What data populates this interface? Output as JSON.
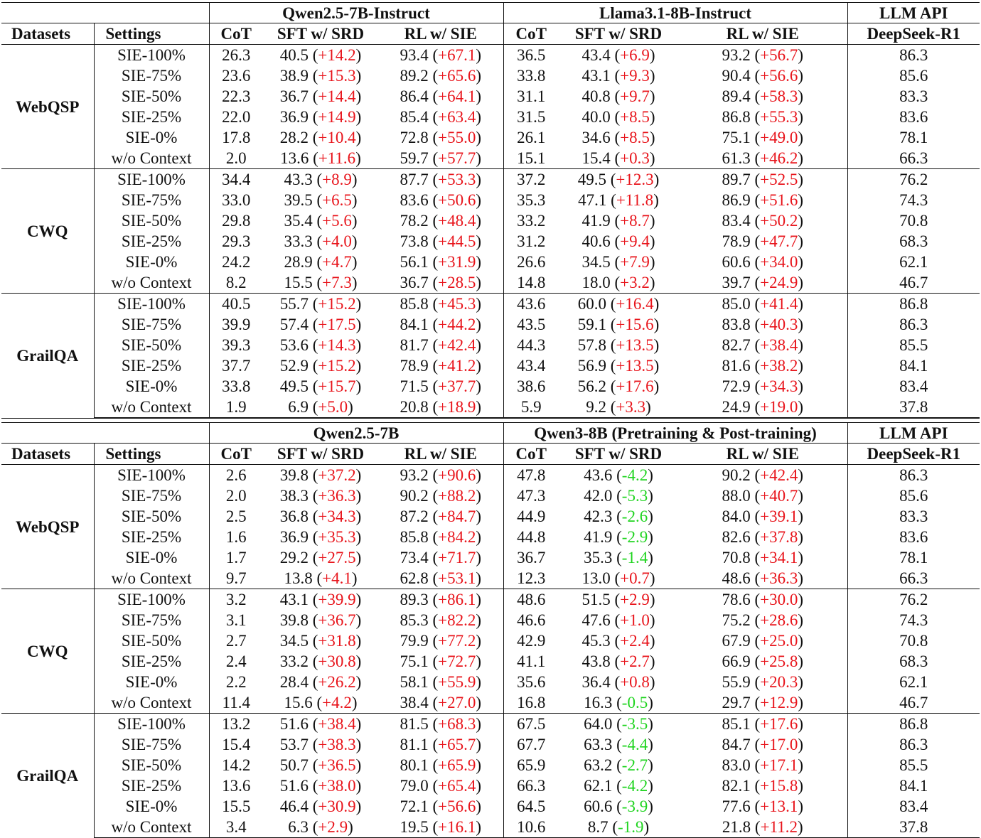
{
  "tables": [
    {
      "header": {
        "model_groups": [
          "Qwen2.5-7B-Instruct",
          "Llama3.1-8B-Instruct",
          "LLM API"
        ],
        "columns": [
          "Datasets",
          "Settings",
          "CoT",
          "SFT w/ SRD",
          "RL w/ SIE",
          "CoT",
          "SFT w/ SRD",
          "RL w/ SIE",
          "DeepSeek-R1"
        ]
      },
      "groups": [
        {
          "dataset": "WebQSP",
          "rows": [
            {
              "setting": "SIE-100%",
              "cot1": "26.3",
              "sft1": "40.5",
              "sft1_d": "+14.2",
              "rl1": "93.4",
              "rl1_d": "+67.1",
              "cot2": "36.5",
              "sft2": "43.4",
              "sft2_d": "+6.9",
              "rl2": "93.2",
              "rl2_d": "+56.7",
              "api": "86.3"
            },
            {
              "setting": "SIE-75%",
              "cot1": "23.6",
              "sft1": "38.9",
              "sft1_d": "+15.3",
              "rl1": "89.2",
              "rl1_d": "+65.6",
              "cot2": "33.8",
              "sft2": "43.1",
              "sft2_d": "+9.3",
              "rl2": "90.4",
              "rl2_d": "+56.6",
              "api": "85.6"
            },
            {
              "setting": "SIE-50%",
              "cot1": "22.3",
              "sft1": "36.7",
              "sft1_d": "+14.4",
              "rl1": "86.4",
              "rl1_d": "+64.1",
              "cot2": "31.1",
              "sft2": "40.8",
              "sft2_d": "+9.7",
              "rl2": "89.4",
              "rl2_d": "+58.3",
              "api": "83.3"
            },
            {
              "setting": "SIE-25%",
              "cot1": "22.0",
              "sft1": "36.9",
              "sft1_d": "+14.9",
              "rl1": "85.4",
              "rl1_d": "+63.4",
              "cot2": "31.5",
              "sft2": "40.0",
              "sft2_d": "+8.5",
              "rl2": "86.8",
              "rl2_d": "+55.3",
              "api": "83.6"
            },
            {
              "setting": "SIE-0%",
              "cot1": "17.8",
              "sft1": "28.2",
              "sft1_d": "+10.4",
              "rl1": "72.8",
              "rl1_d": "+55.0",
              "cot2": "26.1",
              "sft2": "34.6",
              "sft2_d": "+8.5",
              "rl2": "75.1",
              "rl2_d": "+49.0",
              "api": "78.1"
            },
            {
              "setting": "w/o Context",
              "cot1": "2.0",
              "sft1": "13.6",
              "sft1_d": "+11.6",
              "rl1": "59.7",
              "rl1_d": "+57.7",
              "cot2": "15.1",
              "sft2": "15.4",
              "sft2_d": "+0.3",
              "rl2": "61.3",
              "rl2_d": "+46.2",
              "api": "66.3"
            }
          ]
        },
        {
          "dataset": "CWQ",
          "rows": [
            {
              "setting": "SIE-100%",
              "cot1": "34.4",
              "sft1": "43.3",
              "sft1_d": "+8.9",
              "rl1": "87.7",
              "rl1_d": "+53.3",
              "cot2": "37.2",
              "sft2": "49.5",
              "sft2_d": "+12.3",
              "rl2": "89.7",
              "rl2_d": "+52.5",
              "api": "76.2"
            },
            {
              "setting": "SIE-75%",
              "cot1": "33.0",
              "sft1": "39.5",
              "sft1_d": "+6.5",
              "rl1": "83.6",
              "rl1_d": "+50.6",
              "cot2": "35.3",
              "sft2": "47.1",
              "sft2_d": "+11.8",
              "rl2": "86.9",
              "rl2_d": "+51.6",
              "api": "74.3"
            },
            {
              "setting": "SIE-50%",
              "cot1": "29.8",
              "sft1": "35.4",
              "sft1_d": "+5.6",
              "rl1": "78.2",
              "rl1_d": "+48.4",
              "cot2": "33.2",
              "sft2": "41.9",
              "sft2_d": "+8.7",
              "rl2": "83.4",
              "rl2_d": "+50.2",
              "api": "70.8"
            },
            {
              "setting": "SIE-25%",
              "cot1": "29.3",
              "sft1": "33.3",
              "sft1_d": "+4.0",
              "rl1": "73.8",
              "rl1_d": "+44.5",
              "cot2": "31.2",
              "sft2": "40.6",
              "sft2_d": "+9.4",
              "rl2": "78.9",
              "rl2_d": "+47.7",
              "api": "68.3"
            },
            {
              "setting": "SIE-0%",
              "cot1": "24.2",
              "sft1": "28.9",
              "sft1_d": "+4.7",
              "rl1": "56.1",
              "rl1_d": "+31.9",
              "cot2": "26.6",
              "sft2": "34.5",
              "sft2_d": "+7.9",
              "rl2": "60.6",
              "rl2_d": "+34.0",
              "api": "62.1"
            },
            {
              "setting": "w/o Context",
              "cot1": "8.2",
              "sft1": "15.5",
              "sft1_d": "+7.3",
              "rl1": "36.7",
              "rl1_d": "+28.5",
              "cot2": "14.8",
              "sft2": "18.0",
              "sft2_d": "+3.2",
              "rl2": "39.7",
              "rl2_d": "+24.9",
              "api": "46.7"
            }
          ]
        },
        {
          "dataset": "GrailQA",
          "rows": [
            {
              "setting": "SIE-100%",
              "cot1": "40.5",
              "sft1": "55.7",
              "sft1_d": "+15.2",
              "rl1": "85.8",
              "rl1_d": "+45.3",
              "cot2": "43.6",
              "sft2": "60.0",
              "sft2_d": "+16.4",
              "rl2": "85.0",
              "rl2_d": "+41.4",
              "api": "86.8"
            },
            {
              "setting": "SIE-75%",
              "cot1": "39.9",
              "sft1": "57.4",
              "sft1_d": "+17.5",
              "rl1": "84.1",
              "rl1_d": "+44.2",
              "cot2": "43.5",
              "sft2": "59.1",
              "sft2_d": "+15.6",
              "rl2": "83.8",
              "rl2_d": "+40.3",
              "api": "86.3"
            },
            {
              "setting": "SIE-50%",
              "cot1": "39.3",
              "sft1": "53.6",
              "sft1_d": "+14.3",
              "rl1": "81.7",
              "rl1_d": "+42.4",
              "cot2": "44.3",
              "sft2": "57.8",
              "sft2_d": "+13.5",
              "rl2": "82.7",
              "rl2_d": "+38.4",
              "api": "85.5"
            },
            {
              "setting": "SIE-25%",
              "cot1": "37.7",
              "sft1": "52.9",
              "sft1_d": "+15.2",
              "rl1": "78.9",
              "rl1_d": "+41.2",
              "cot2": "43.4",
              "sft2": "56.9",
              "sft2_d": "+13.5",
              "rl2": "81.6",
              "rl2_d": "+38.2",
              "api": "84.1"
            },
            {
              "setting": "SIE-0%",
              "cot1": "33.8",
              "sft1": "49.5",
              "sft1_d": "+15.7",
              "rl1": "71.5",
              "rl1_d": "+37.7",
              "cot2": "38.6",
              "sft2": "56.2",
              "sft2_d": "+17.6",
              "rl2": "72.9",
              "rl2_d": "+34.3",
              "api": "83.4"
            },
            {
              "setting": "w/o Context",
              "cot1": "1.9",
              "sft1": "6.9",
              "sft1_d": "+5.0",
              "rl1": "20.8",
              "rl1_d": "+18.9",
              "cot2": "5.9",
              "sft2": "9.2",
              "sft2_d": "+3.3",
              "rl2": "24.9",
              "rl2_d": "+19.0",
              "api": "37.8"
            }
          ]
        }
      ]
    },
    {
      "header": {
        "model_groups": [
          "Qwen2.5-7B",
          "Qwen3-8B (Pretraining & Post-training)",
          "LLM API"
        ],
        "columns": [
          "Datasets",
          "Settings",
          "CoT",
          "SFT w/ SRD",
          "RL w/ SIE",
          "CoT",
          "SFT w/ SRD",
          "RL w/ SIE",
          "DeepSeek-R1"
        ]
      },
      "groups": [
        {
          "dataset": "WebQSP",
          "rows": [
            {
              "setting": "SIE-100%",
              "cot1": "2.6",
              "sft1": "39.8",
              "sft1_d": "+37.2",
              "rl1": "93.2",
              "rl1_d": "+90.6",
              "cot2": "47.8",
              "sft2": "43.6",
              "sft2_d": "-4.2",
              "rl2": "90.2",
              "rl2_d": "+42.4",
              "api": "86.3"
            },
            {
              "setting": "SIE-75%",
              "cot1": "2.0",
              "sft1": "38.3",
              "sft1_d": "+36.3",
              "rl1": "90.2",
              "rl1_d": "+88.2",
              "cot2": "47.3",
              "sft2": "42.0",
              "sft2_d": "-5.3",
              "rl2": "88.0",
              "rl2_d": "+40.7",
              "api": "85.6"
            },
            {
              "setting": "SIE-50%",
              "cot1": "2.5",
              "sft1": "36.8",
              "sft1_d": "+34.3",
              "rl1": "87.2",
              "rl1_d": "+84.7",
              "cot2": "44.9",
              "sft2": "42.3",
              "sft2_d": "-2.6",
              "rl2": "84.0",
              "rl2_d": "+39.1",
              "api": "83.3"
            },
            {
              "setting": "SIE-25%",
              "cot1": "1.6",
              "sft1": "36.9",
              "sft1_d": "+35.3",
              "rl1": "85.8",
              "rl1_d": "+84.2",
              "cot2": "44.8",
              "sft2": "41.9",
              "sft2_d": "-2.9",
              "rl2": "82.6",
              "rl2_d": "+37.8",
              "api": "83.6"
            },
            {
              "setting": "SIE-0%",
              "cot1": "1.7",
              "sft1": "29.2",
              "sft1_d": "+27.5",
              "rl1": "73.4",
              "rl1_d": "+71.7",
              "cot2": "36.7",
              "sft2": "35.3",
              "sft2_d": "-1.4",
              "rl2": "70.8",
              "rl2_d": "+34.1",
              "api": "78.1"
            },
            {
              "setting": "w/o Context",
              "cot1": "9.7",
              "sft1": "13.8",
              "sft1_d": "+4.1",
              "rl1": "62.8",
              "rl1_d": "+53.1",
              "cot2": "12.3",
              "sft2": "13.0",
              "sft2_d": "+0.7",
              "rl2": "48.6",
              "rl2_d": "+36.3",
              "api": "66.3"
            }
          ]
        },
        {
          "dataset": "CWQ",
          "rows": [
            {
              "setting": "SIE-100%",
              "cot1": "3.2",
              "sft1": "43.1",
              "sft1_d": "+39.9",
              "rl1": "89.3",
              "rl1_d": "+86.1",
              "cot2": "48.6",
              "sft2": "51.5",
              "sft2_d": "+2.9",
              "rl2": "78.6",
              "rl2_d": "+30.0",
              "api": "76.2"
            },
            {
              "setting": "SIE-75%",
              "cot1": "3.1",
              "sft1": "39.8",
              "sft1_d": "+36.7",
              "rl1": "85.3",
              "rl1_d": "+82.2",
              "cot2": "46.6",
              "sft2": "47.6",
              "sft2_d": "+1.0",
              "rl2": "75.2",
              "rl2_d": "+28.6",
              "api": "74.3"
            },
            {
              "setting": "SIE-50%",
              "cot1": "2.7",
              "sft1": "34.5",
              "sft1_d": "+31.8",
              "rl1": "79.9",
              "rl1_d": "+77.2",
              "cot2": "42.9",
              "sft2": "45.3",
              "sft2_d": "+2.4",
              "rl2": "67.9",
              "rl2_d": "+25.0",
              "api": "70.8"
            },
            {
              "setting": "SIE-25%",
              "cot1": "2.4",
              "sft1": "33.2",
              "sft1_d": "+30.8",
              "rl1": "75.1",
              "rl1_d": "+72.7",
              "cot2": "41.1",
              "sft2": "43.8",
              "sft2_d": "+2.7",
              "rl2": "66.9",
              "rl2_d": "+25.8",
              "api": "68.3"
            },
            {
              "setting": "SIE-0%",
              "cot1": "2.2",
              "sft1": "28.4",
              "sft1_d": "+26.2",
              "rl1": "58.1",
              "rl1_d": "+55.9",
              "cot2": "35.6",
              "sft2": "36.4",
              "sft2_d": "+0.8",
              "rl2": "55.9",
              "rl2_d": "+20.3",
              "api": "62.1"
            },
            {
              "setting": "w/o Context",
              "cot1": "11.4",
              "sft1": "15.6",
              "sft1_d": "+4.2",
              "rl1": "38.4",
              "rl1_d": "+27.0",
              "cot2": "16.8",
              "sft2": "16.3",
              "sft2_d": "-0.5",
              "rl2": "29.7",
              "rl2_d": "+12.9",
              "api": "46.7"
            }
          ]
        },
        {
          "dataset": "GrailQA",
          "rows": [
            {
              "setting": "SIE-100%",
              "cot1": "13.2",
              "sft1": "51.6",
              "sft1_d": "+38.4",
              "rl1": "81.5",
              "rl1_d": "+68.3",
              "cot2": "67.5",
              "sft2": "64.0",
              "sft2_d": "-3.5",
              "rl2": "85.1",
              "rl2_d": "+17.6",
              "api": "86.8"
            },
            {
              "setting": "SIE-75%",
              "cot1": "15.4",
              "sft1": "53.7",
              "sft1_d": "+38.3",
              "rl1": "81.1",
              "rl1_d": "+65.7",
              "cot2": "67.7",
              "sft2": "63.3",
              "sft2_d": "-4.4",
              "rl2": "84.7",
              "rl2_d": "+17.0",
              "api": "86.3"
            },
            {
              "setting": "SIE-50%",
              "cot1": "14.2",
              "sft1": "50.7",
              "sft1_d": "+36.5",
              "rl1": "80.1",
              "rl1_d": "+65.9",
              "cot2": "65.9",
              "sft2": "63.2",
              "sft2_d": "-2.7",
              "rl2": "83.0",
              "rl2_d": "+17.1",
              "api": "85.5"
            },
            {
              "setting": "SIE-25%",
              "cot1": "13.6",
              "sft1": "51.6",
              "sft1_d": "+38.0",
              "rl1": "79.0",
              "rl1_d": "+65.4",
              "cot2": "66.3",
              "sft2": "62.1",
              "sft2_d": "-4.2",
              "rl2": "82.1",
              "rl2_d": "+15.8",
              "api": "84.1"
            },
            {
              "setting": "SIE-0%",
              "cot1": "15.5",
              "sft1": "46.4",
              "sft1_d": "+30.9",
              "rl1": "72.1",
              "rl1_d": "+56.6",
              "cot2": "64.5",
              "sft2": "60.6",
              "sft2_d": "-3.9",
              "rl2": "77.6",
              "rl2_d": "+13.1",
              "api": "83.4"
            },
            {
              "setting": "w/o Context",
              "cot1": "3.4",
              "sft1": "6.3",
              "sft1_d": "+2.9",
              "rl1": "19.5",
              "rl1_d": "+16.1",
              "cot2": "10.6",
              "sft2": "8.7",
              "sft2_d": "-1.9",
              "rl2": "21.8",
              "rl2_d": "+11.2",
              "api": "37.8"
            }
          ]
        }
      ]
    }
  ],
  "colors": {
    "positive_delta": "#e8141b",
    "negative_delta": "#1fd41f",
    "text": "#111111",
    "rule": "#111111"
  }
}
